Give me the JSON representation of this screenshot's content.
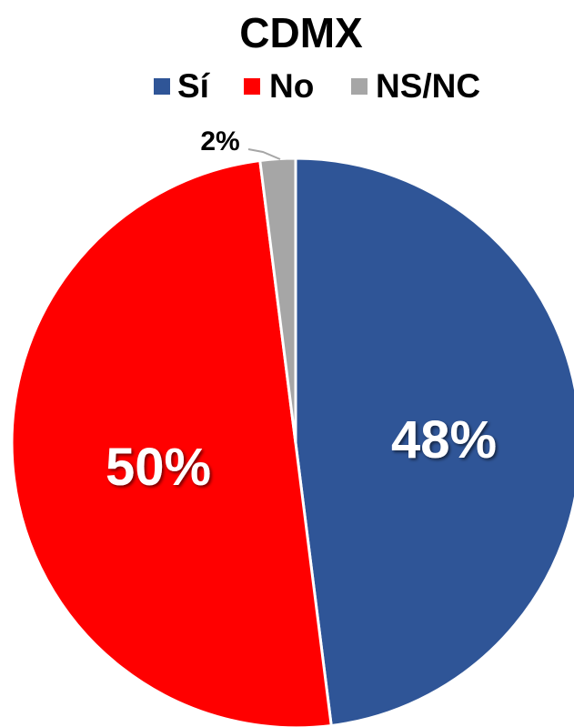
{
  "chart_data": {
    "type": "pie",
    "title": "CDMX",
    "legend_position": "top",
    "categories": [
      "Sí",
      "No",
      "NS/NC"
    ],
    "values": [
      48,
      50,
      2
    ],
    "labels": [
      "48%",
      "50%",
      "2%"
    ],
    "colors": [
      "#2F5597",
      "#FF0000",
      "#A6A6A6"
    ]
  }
}
